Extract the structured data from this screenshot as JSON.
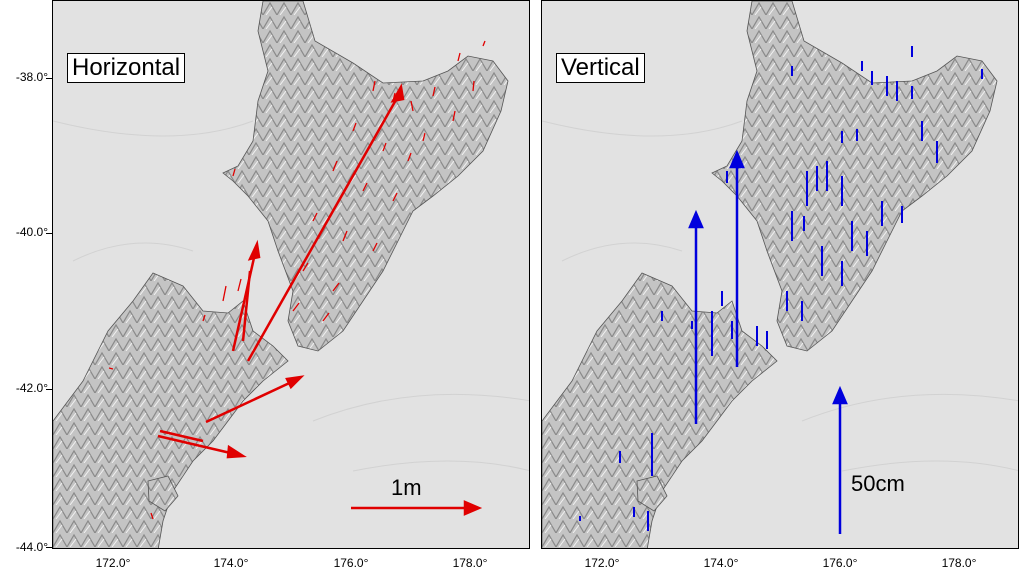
{
  "panels": {
    "left": {
      "title": "Horizontal",
      "scale_label": "1m",
      "arrow_color": "#e00000"
    },
    "right": {
      "title": "Vertical",
      "scale_label": "50cm",
      "arrow_color": "#0000dd"
    }
  },
  "axes": {
    "lat_ticks": [
      "-38.0°",
      "-40.0°",
      "-42.0°",
      "-44.0°"
    ],
    "lon_ticks": [
      "172.0°",
      "174.0°",
      "176.0°",
      "178.0°"
    ]
  },
  "colors": {
    "sea": "#e2e2e2",
    "land": "#bdbdbd",
    "frame": "#000000"
  }
}
